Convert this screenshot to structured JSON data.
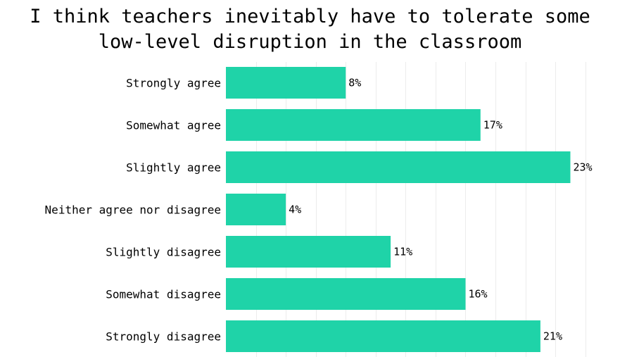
{
  "chart_data": {
    "type": "bar",
    "orientation": "horizontal",
    "title_lines": [
      "I think teachers inevitably have to tolerate some",
      "low-level disruption in the classroom"
    ],
    "categories": [
      "Strongly agree",
      "Somewhat agree",
      "Slightly agree",
      "Neither agree nor disagree",
      "Slightly disagree",
      "Somewhat disagree",
      "Strongly disagree"
    ],
    "values": [
      8,
      17,
      23,
      4,
      11,
      16,
      21
    ],
    "value_labels": [
      "8%",
      "17%",
      "23%",
      "4%",
      "11%",
      "16%",
      "21%"
    ],
    "unit": "%",
    "xlim": [
      0,
      24.2
    ],
    "grid": true,
    "bar_color": "#1fd3a8",
    "grid_color": "#ececec"
  }
}
